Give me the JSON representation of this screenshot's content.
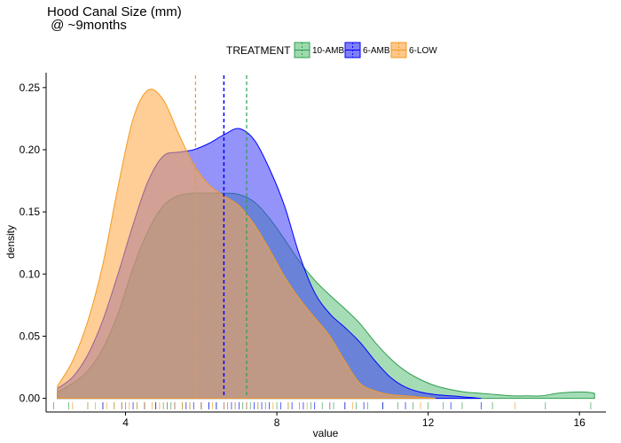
{
  "chart_data": {
    "type": "density",
    "title_lines": [
      "Hood Canal Size (mm)",
      " @ ~9months"
    ],
    "xlabel": "value",
    "ylabel": "density",
    "xlim": [
      1.9,
      16.7
    ],
    "ylim": [
      -0.011,
      0.262
    ],
    "x_ticks": [
      4,
      8,
      12,
      16
    ],
    "x_tick_labels": [
      "4",
      "8",
      "12",
      "16"
    ],
    "y_ticks": [
      0,
      0.05,
      0.1,
      0.15,
      0.2,
      0.25
    ],
    "y_tick_labels": [
      "0.00",
      "0.05",
      "0.10",
      "0.15",
      "0.20",
      "0.25"
    ],
    "grid": false,
    "legend": {
      "title": "TREATMENT",
      "position": "top",
      "entries": [
        "10-AMB",
        "6-AMB",
        "6-LOW"
      ]
    },
    "colors": {
      "10-AMB": "#2e9e4f",
      "10-AMB_fill": "#5bbf7a",
      "6-AMB": "#0000ff",
      "6-AMB_fill": "#3a3af5",
      "6-LOW": "#f29a1f",
      "6-LOW_fill": "#ffa84a"
    },
    "series": [
      {
        "name": "10-AMB",
        "mean": 7.2,
        "x": [
          2.2,
          2.6,
          3.0,
          3.4,
          3.8,
          4.2,
          4.6,
          5.0,
          5.4,
          5.8,
          6.2,
          6.6,
          7.0,
          7.4,
          7.8,
          8.2,
          8.6,
          9.0,
          9.4,
          9.8,
          10.2,
          10.6,
          11.0,
          11.4,
          11.8,
          12.2,
          12.6,
          13.0,
          13.4,
          13.8,
          14.2,
          14.6,
          15.0,
          15.4,
          15.8,
          16.2,
          16.4
        ],
        "y": [
          0.005,
          0.012,
          0.022,
          0.04,
          0.068,
          0.105,
          0.135,
          0.155,
          0.163,
          0.165,
          0.165,
          0.165,
          0.164,
          0.158,
          0.145,
          0.128,
          0.11,
          0.095,
          0.083,
          0.072,
          0.06,
          0.045,
          0.032,
          0.022,
          0.015,
          0.01,
          0.007,
          0.005,
          0.004,
          0.003,
          0.002,
          0.002,
          0.002,
          0.004,
          0.005,
          0.005,
          0.004
        ]
      },
      {
        "name": "6-AMB",
        "mean": 6.6,
        "x": [
          2.2,
          2.6,
          3.0,
          3.4,
          3.8,
          4.2,
          4.6,
          5.0,
          5.4,
          5.8,
          6.2,
          6.6,
          7.0,
          7.4,
          7.8,
          8.2,
          8.6,
          9.0,
          9.4,
          9.8,
          10.2,
          10.6,
          11.0,
          11.4,
          11.8,
          12.2,
          12.6,
          13.0,
          13.4
        ],
        "y": [
          0.008,
          0.017,
          0.035,
          0.063,
          0.1,
          0.14,
          0.175,
          0.195,
          0.198,
          0.2,
          0.205,
          0.212,
          0.217,
          0.208,
          0.185,
          0.155,
          0.115,
          0.085,
          0.068,
          0.057,
          0.045,
          0.03,
          0.017,
          0.009,
          0.005,
          0.003,
          0.002,
          0.001,
          0.0
        ]
      },
      {
        "name": "6-LOW",
        "mean": 5.85,
        "x": [
          2.2,
          2.6,
          3.0,
          3.4,
          3.8,
          4.2,
          4.6,
          5.0,
          5.4,
          5.8,
          6.2,
          6.6,
          7.0,
          7.4,
          7.8,
          8.2,
          8.6,
          9.0,
          9.4,
          9.8,
          10.2,
          10.6,
          11.0,
          11.4,
          11.8,
          12.2
        ],
        "y": [
          0.01,
          0.03,
          0.062,
          0.108,
          0.17,
          0.225,
          0.248,
          0.24,
          0.213,
          0.188,
          0.172,
          0.163,
          0.155,
          0.14,
          0.12,
          0.098,
          0.08,
          0.065,
          0.05,
          0.03,
          0.012,
          0.006,
          0.003,
          0.002,
          0.001,
          0.0
        ]
      }
    ],
    "rug": {
      "10-AMB": [
        2.1,
        2.5,
        3.0,
        3.4,
        3.7,
        4.0,
        4.3,
        4.5,
        4.8,
        5.0,
        5.2,
        5.5,
        5.7,
        6.0,
        6.2,
        6.4,
        6.7,
        6.9,
        7.1,
        7.3,
        7.5,
        7.7,
        8.0,
        8.3,
        8.6,
        8.9,
        9.2,
        9.5,
        9.8,
        10.1,
        10.4,
        10.8,
        11.2,
        11.6,
        12.0,
        12.4,
        12.9,
        13.7,
        15.1,
        16.3
      ],
      "6-AMB": [
        3.4,
        3.9,
        4.2,
        4.5,
        4.8,
        5.1,
        5.3,
        5.6,
        5.8,
        6.0,
        6.2,
        6.4,
        6.6,
        6.8,
        7.0,
        7.2,
        7.4,
        7.6,
        7.8,
        8.1,
        8.4,
        8.7,
        9.0,
        9.4,
        9.8,
        10.3,
        10.8,
        11.4,
        12.6,
        13.4
      ],
      "6-LOW": [
        2.6,
        3.0,
        3.2,
        3.5,
        3.7,
        3.9,
        4.1,
        4.3,
        4.5,
        4.7,
        4.9,
        5.1,
        5.3,
        5.5,
        5.7,
        6.0,
        6.3,
        6.6,
        6.9,
        7.2,
        7.5,
        7.9,
        8.3,
        8.8,
        9.4,
        10.0,
        11.8,
        14.3
      ]
    }
  }
}
